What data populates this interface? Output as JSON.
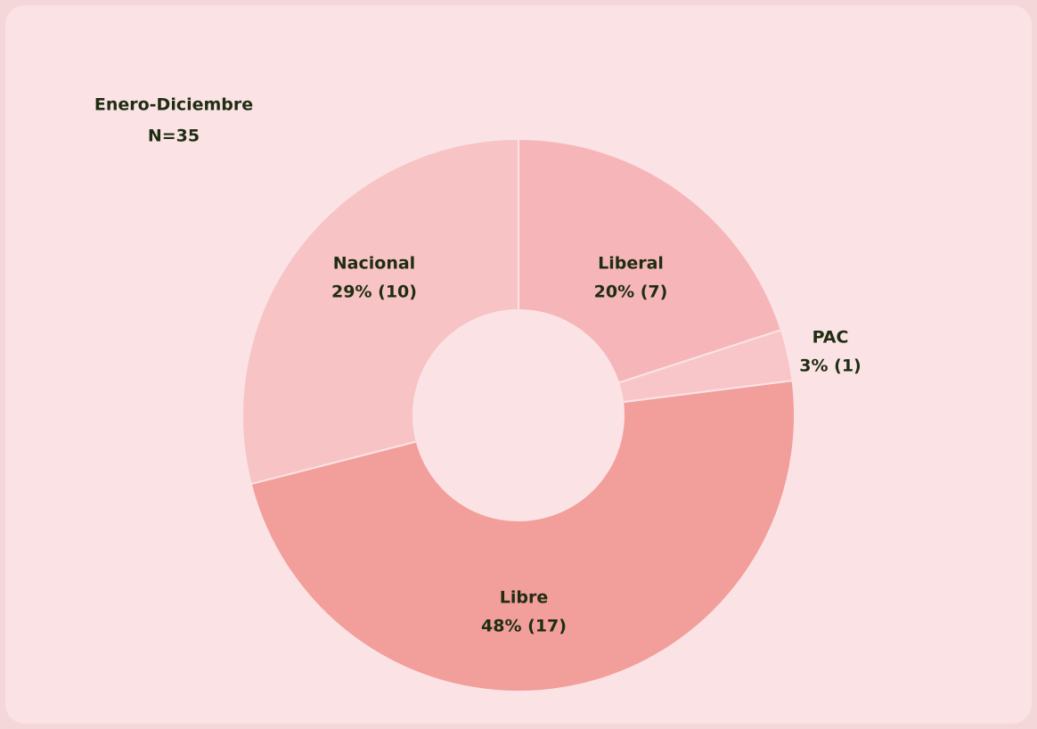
{
  "chart_data": {
    "type": "pie",
    "donut": true,
    "subtitle": "Enero-Diciembre",
    "note": "N=35",
    "categories": [
      "Liberal",
      "PAC",
      "Libre",
      "Nacional"
    ],
    "values": [
      20,
      3,
      48,
      29
    ],
    "value_labels": [
      "20% (7)",
      "3% (1)",
      "48% (17)",
      "29% (10)"
    ],
    "colors": [
      "#f6b6b9",
      "#f8c6c8",
      "#f29e9b",
      "#f7c3c5"
    ]
  }
}
